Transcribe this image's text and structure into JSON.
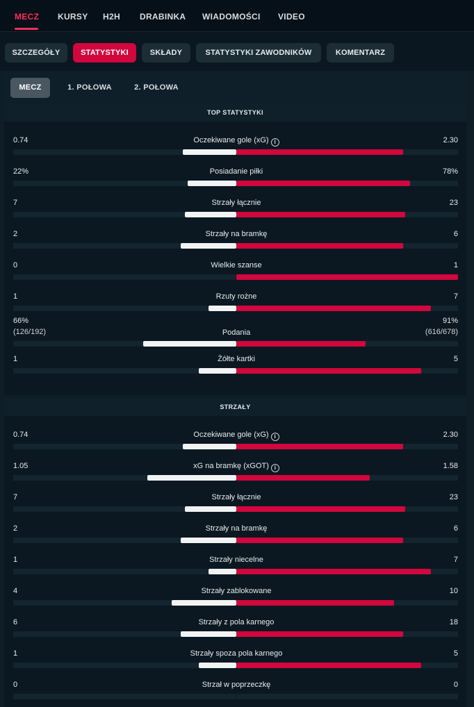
{
  "colors": {
    "accent": "#d1073d",
    "active_nav": "#ff2c5a",
    "home_bar": "#f1f3f4",
    "away_bar": "#d1073d"
  },
  "top_tabs": [
    "MECZ",
    "KURSY",
    "H2H",
    "DRABINKA",
    "WIADOMOŚCI",
    "VIDEO"
  ],
  "sub_tabs": [
    "SZCZEGÓŁY",
    "STATYSTYKI",
    "SKŁADY",
    "STATYSTYKI ZAWODNIKÓW",
    "KOMENTARZ"
  ],
  "period_tabs": [
    "MECZ",
    "1. POŁOWA",
    "2. POŁOWA"
  ],
  "sections": [
    {
      "title": "TOP STATYSTYKI",
      "stats": [
        {
          "name": "Oczekiwane gole (xG)",
          "info": true,
          "home": "0.74",
          "away": "2.30",
          "home_share": 0.24,
          "away_share": 0.75
        },
        {
          "name": "Posiadanie piłki",
          "home": "22%",
          "away": "78%",
          "home_share": 0.22,
          "away_share": 0.78
        },
        {
          "name": "Strzały łącznie",
          "home": "7",
          "away": "23",
          "home_share": 0.23,
          "away_share": 0.76
        },
        {
          "name": "Strzały na bramkę",
          "home": "2",
          "away": "6",
          "home_share": 0.25,
          "away_share": 0.75
        },
        {
          "name": "Wielkie szanse",
          "home": "0",
          "away": "1",
          "home_share": 0.0,
          "away_share": 1.0
        },
        {
          "name": "Rzuty rożne",
          "home": "1",
          "away": "7",
          "home_share": 0.125,
          "away_share": 0.875
        },
        {
          "name": "Podania",
          "home": "66%",
          "away": "91%",
          "home_sub": "(126/192)",
          "away_sub": "(616/678)",
          "home_share": 0.42,
          "away_share": 0.58
        },
        {
          "name": "Żółte kartki",
          "home": "1",
          "away": "5",
          "home_share": 0.17,
          "away_share": 0.83
        }
      ]
    },
    {
      "title": "STRZAŁY",
      "stats": [
        {
          "name": "Oczekiwane gole (xG)",
          "info": true,
          "home": "0.74",
          "away": "2.30",
          "home_share": 0.24,
          "away_share": 0.75
        },
        {
          "name": "xG na bramkę (xGOT)",
          "info": true,
          "home": "1.05",
          "away": "1.58",
          "home_share": 0.4,
          "away_share": 0.6
        },
        {
          "name": "Strzały łącznie",
          "home": "7",
          "away": "23",
          "home_share": 0.23,
          "away_share": 0.76
        },
        {
          "name": "Strzały na bramkę",
          "home": "2",
          "away": "6",
          "home_share": 0.25,
          "away_share": 0.75
        },
        {
          "name": "Strzały niecelne",
          "home": "1",
          "away": "7",
          "home_share": 0.125,
          "away_share": 0.875
        },
        {
          "name": "Strzały zablokowane",
          "home": "4",
          "away": "10",
          "home_share": 0.29,
          "away_share": 0.71
        },
        {
          "name": "Strzały z pola karnego",
          "home": "6",
          "away": "18",
          "home_share": 0.25,
          "away_share": 0.75
        },
        {
          "name": "Strzały spoza pola karnego",
          "home": "1",
          "away": "5",
          "home_share": 0.17,
          "away_share": 0.83
        },
        {
          "name": "Strzał w poprzeczkę",
          "home": "0",
          "away": "0",
          "home_share": 0.0,
          "away_share": 0.0
        }
      ]
    }
  ]
}
